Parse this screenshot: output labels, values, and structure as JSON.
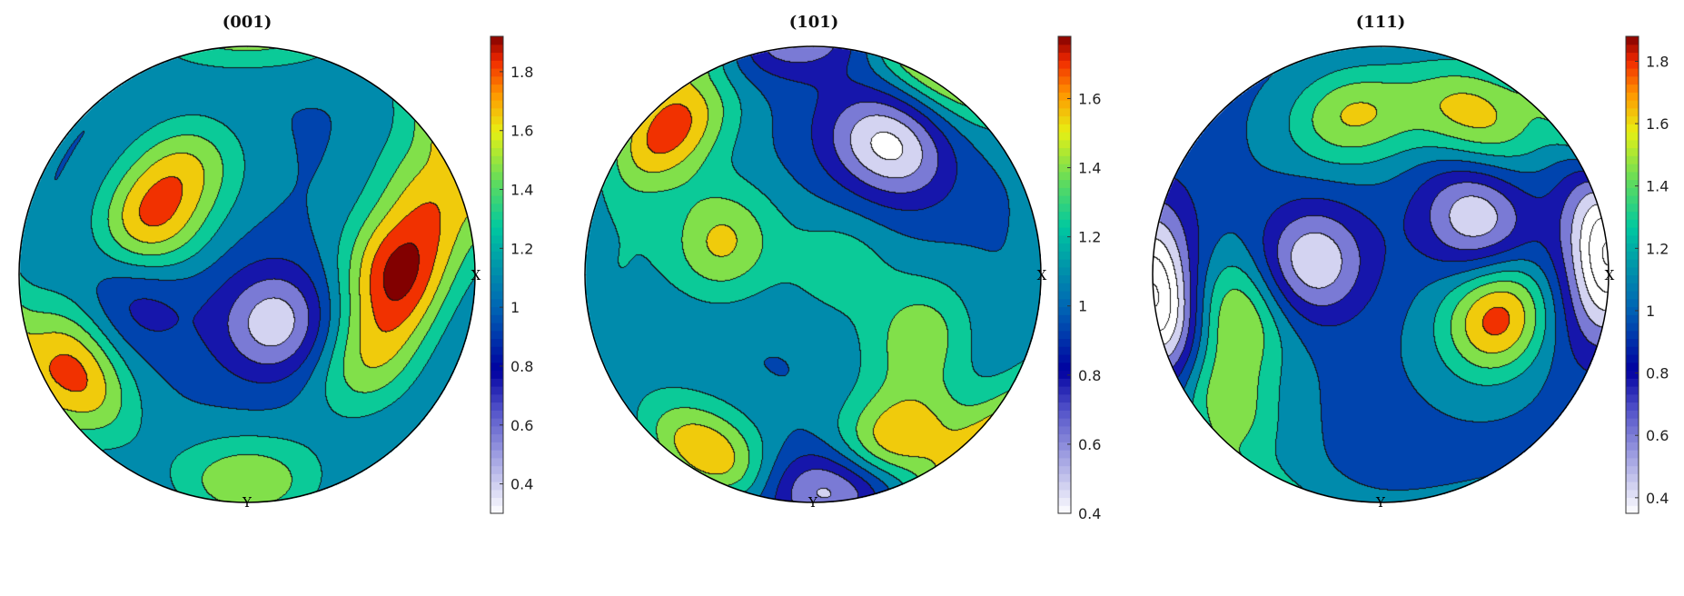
{
  "chart_data": [
    {
      "type": "contour",
      "title": "(001)",
      "axis_labels": {
        "x": "X",
        "y": "Y"
      },
      "colorbar": {
        "range": [
          0.3,
          1.92
        ],
        "ticks": [
          0.4,
          0.6,
          0.8,
          1,
          1.2,
          1.4,
          1.6,
          1.8
        ]
      },
      "peaks": [
        {
          "lon": 0,
          "lat": 55,
          "value": 1.85
        },
        {
          "lon": 155,
          "lat": 40,
          "value": 1.7
        },
        {
          "lon": 210,
          "lat": 75,
          "value": 1.75
        },
        {
          "lon": 270,
          "lat": 80,
          "value": 1.55
        },
        {
          "lon": 325,
          "lat": 55,
          "value": 1.5
        },
        {
          "lon": 120,
          "lat": 45,
          "value": 1.5
        },
        {
          "lon": 20,
          "lat": 75,
          "value": 1.55
        },
        {
          "lon": 300,
          "lat": 20,
          "value": 0.35
        },
        {
          "lon": 190,
          "lat": 40,
          "value": 0.65
        }
      ]
    },
    {
      "type": "contour",
      "title": "(101)",
      "axis_labels": {
        "x": "X",
        "y": "Y"
      },
      "colorbar": {
        "range": [
          0.4,
          1.78
        ],
        "ticks": [
          0.4,
          0.6,
          0.8,
          1,
          1.2,
          1.4,
          1.6
        ]
      },
      "peaks": [
        {
          "lon": 135,
          "lat": 78,
          "value": 1.7
        },
        {
          "lon": 240,
          "lat": 80,
          "value": 1.65
        },
        {
          "lon": 295,
          "lat": 70,
          "value": 1.7
        },
        {
          "lon": 160,
          "lat": 35,
          "value": 1.5
        },
        {
          "lon": 330,
          "lat": 45,
          "value": 1.4
        },
        {
          "lon": 60,
          "lat": 55,
          "value": 0.35
        },
        {
          "lon": 275,
          "lat": 82,
          "value": 0.35
        },
        {
          "lon": 20,
          "lat": 10,
          "value": 1.25
        },
        {
          "lon": 180,
          "lat": 75,
          "value": 1.15
        }
      ]
    },
    {
      "type": "contour",
      "title": "(111)",
      "axis_labels": {
        "x": "X",
        "y": "Y"
      },
      "colorbar": {
        "range": [
          0.35,
          1.88
        ],
        "ticks": [
          0.4,
          0.6,
          0.8,
          1,
          1.2,
          1.4,
          1.6,
          1.8
        ]
      },
      "peaks": [
        {
          "lon": 340,
          "lat": 45,
          "value": 1.8
        },
        {
          "lon": 60,
          "lat": 70,
          "value": 1.6
        },
        {
          "lon": 100,
          "lat": 60,
          "value": 1.55
        },
        {
          "lon": 195,
          "lat": 55,
          "value": 1.55
        },
        {
          "lon": 215,
          "lat": 78,
          "value": 1.6
        },
        {
          "lon": 170,
          "lat": 25,
          "value": 0.35
        },
        {
          "lon": 30,
          "lat": 40,
          "value": 0.35
        },
        {
          "lon": 195,
          "lat": 85,
          "value": 0.35
        },
        {
          "lon": 0,
          "lat": 88,
          "value": 0.35
        }
      ]
    }
  ]
}
